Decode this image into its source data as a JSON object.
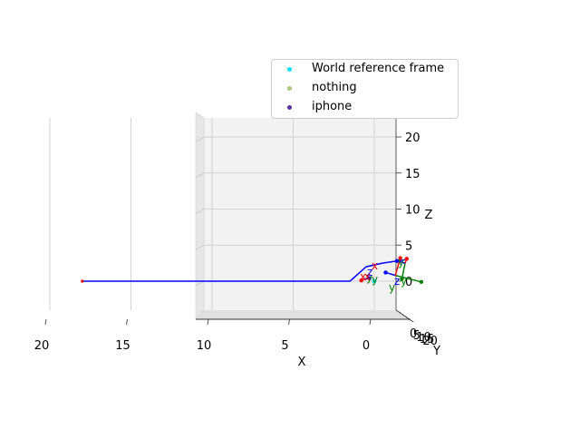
{
  "chart_data": {
    "type": "scatter",
    "subtype": "3d",
    "title": "",
    "xlabel": "X",
    "ylabel": "Y",
    "zlabel": "Z",
    "x_ticks": [
      "20",
      "15",
      "10",
      "5",
      "0"
    ],
    "y_ticks": [
      "0",
      "5",
      "10",
      "15",
      "20"
    ],
    "z_ticks": [
      "0",
      "5",
      "10",
      "15",
      "20"
    ],
    "xlim": [
      -2,
      22
    ],
    "ylim": [
      0,
      20
    ],
    "zlim": [
      -3,
      22
    ],
    "grid": true,
    "legend_placement": "top-right",
    "series": [
      {
        "name": "World reference frame",
        "color": "#00e5ff",
        "x": [
          0
        ],
        "y": [
          0
        ],
        "z": [
          0
        ]
      },
      {
        "name": "nothing",
        "color": "#a8c87a",
        "x": [],
        "y": [],
        "z": []
      },
      {
        "name": "iphone",
        "color": "#5b2ba8",
        "x": [],
        "y": [],
        "z": []
      }
    ],
    "paths": [
      {
        "color": "#0000ff",
        "points": [
          [
            18,
            0,
            0
          ],
          [
            1.5,
            0,
            0
          ],
          [
            1,
            0,
            1
          ],
          [
            0.5,
            0,
            2
          ],
          [
            -0.5,
            0,
            2.5
          ],
          [
            -2,
            0,
            3
          ]
        ]
      }
    ],
    "frame_axis_labels": [
      {
        "text": "x",
        "color": "#ff0000"
      },
      {
        "text": "y",
        "color": "#008000"
      },
      {
        "text": "z",
        "color": "#0000ff"
      },
      {
        "text": "x",
        "color": "#ff0000"
      },
      {
        "text": "y",
        "color": "#008000"
      },
      {
        "text": "z",
        "color": "#0000ff"
      },
      {
        "text": "y",
        "color": "#008000"
      },
      {
        "text": "y",
        "color": "#008000"
      },
      {
        "text": "x",
        "color": "#ff0000"
      },
      {
        "text": "y",
        "color": "#008000"
      }
    ]
  }
}
